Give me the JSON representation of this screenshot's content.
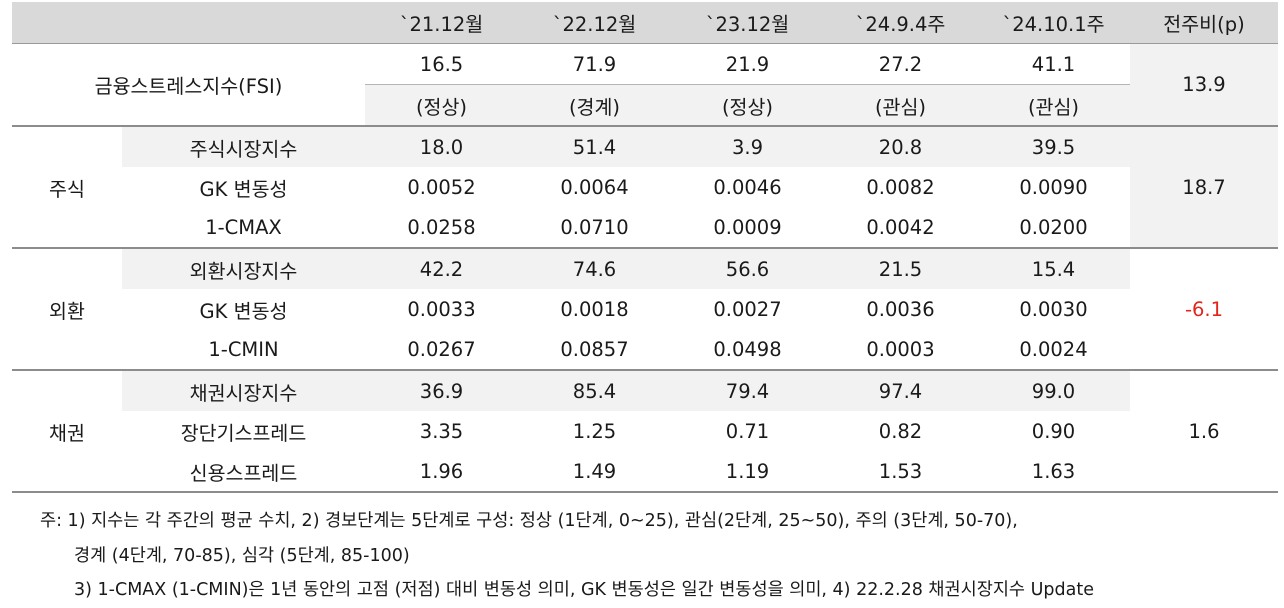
{
  "header": {
    "columns": [
      "`21.12월",
      "`22.12월",
      "`23.12월",
      "`24.9.4주",
      "`24.10.1주"
    ],
    "diff_label": "전주비(p)"
  },
  "fsi": {
    "label": "금융스트레스지수(FSI)",
    "values": [
      "16.5",
      "71.9",
      "21.9",
      "27.2",
      "41.1"
    ],
    "stages": [
      "(정상)",
      "(경계)",
      "(정상)",
      "(관심)",
      "(관심)"
    ],
    "diff": "13.9"
  },
  "groups": [
    {
      "label": "주식",
      "diff": "18.7",
      "rows": [
        {
          "label": "주식시장지수",
          "values": [
            "18.0",
            "51.4",
            "3.9",
            "20.8",
            "39.5"
          ]
        },
        {
          "label": "GK 변동성",
          "values": [
            "0.0052",
            "0.0064",
            "0.0046",
            "0.0082",
            "0.0090"
          ]
        },
        {
          "label": "1-CMAX",
          "values": [
            "0.0258",
            "0.0710",
            "0.0009",
            "0.0042",
            "0.0200"
          ]
        }
      ]
    },
    {
      "label": "외환",
      "diff": "-6.1",
      "rows": [
        {
          "label": "외환시장지수",
          "values": [
            "42.2",
            "74.6",
            "56.6",
            "21.5",
            "15.4"
          ]
        },
        {
          "label": "GK 변동성",
          "values": [
            "0.0033",
            "0.0018",
            "0.0027",
            "0.0036",
            "0.0030"
          ]
        },
        {
          "label": "1-CMIN",
          "values": [
            "0.0267",
            "0.0857",
            "0.0498",
            "0.0003",
            "0.0024"
          ]
        }
      ]
    },
    {
      "label": "채권",
      "diff": "1.6",
      "rows": [
        {
          "label": "채권시장지수",
          "values": [
            "36.9",
            "85.4",
            "79.4",
            "97.4",
            "99.0"
          ]
        },
        {
          "label": "장단기스프레드",
          "values": [
            "3.35",
            "1.25",
            "0.71",
            "0.82",
            "0.90"
          ]
        },
        {
          "label": "신용스프레드",
          "values": [
            "1.96",
            "1.49",
            "1.19",
            "1.53",
            "1.63"
          ]
        }
      ]
    }
  ],
  "notes": [
    "주: 1) 지수는 각 주간의 평균 수치, 2) 경보단계는 5단계로 구성: 정상 (1단계, 0~25), 관심(2단계, 25~50), 주의 (3단계, 50-70),",
    "경계 (4단계, 70-85), 심각 (5단계, 85-100)",
    "3) 1-CMAX (1-CMIN)은 1년 동안의 고점 (저점) 대비 변동성 의미, GK 변동성은 일간 변동성을 의미, 4) 22.2.28 채권시장지수 Update"
  ]
}
